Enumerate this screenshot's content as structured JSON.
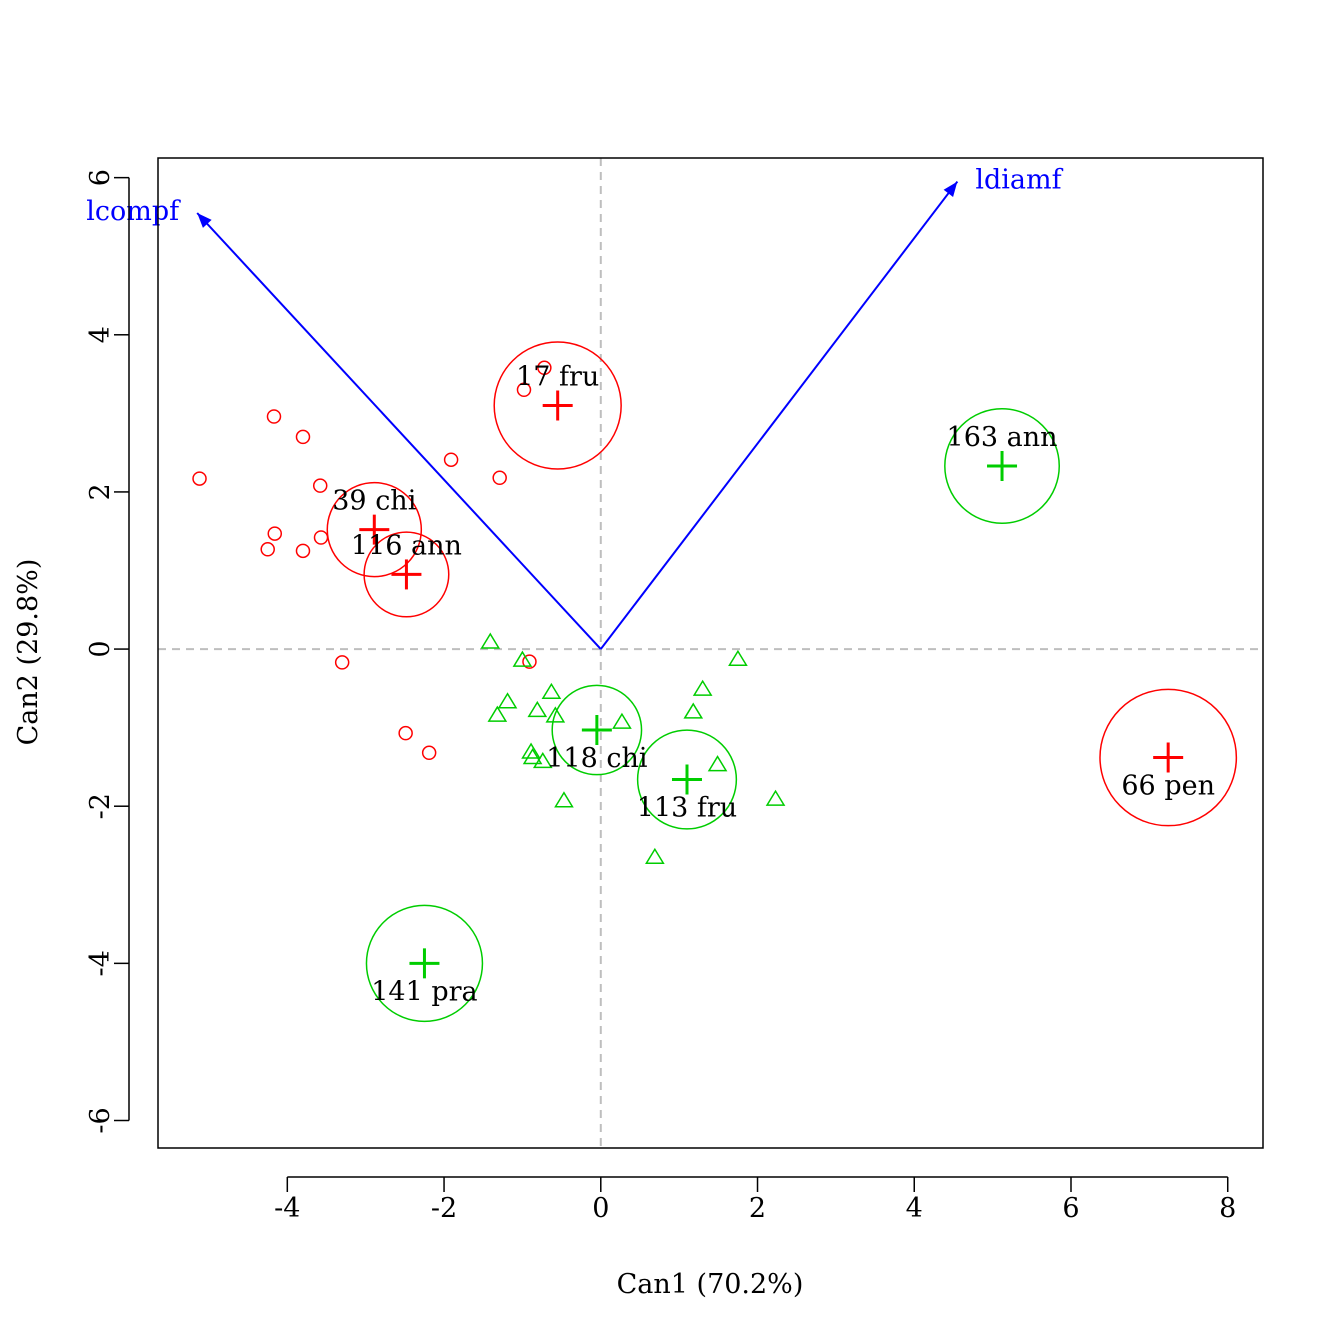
{
  "chart_data": {
    "type": "scatter",
    "title": "",
    "xlabel": "Can1 (70.2%)",
    "ylabel": "Can2 (29.8%)",
    "xlim": [
      -5.65,
      8.45
    ],
    "ylim": [
      -6.35,
      6.25
    ],
    "xticks": [
      -4,
      -2,
      0,
      2,
      4,
      6,
      8
    ],
    "xtick_labels": [
      "-4",
      "-2",
      "0",
      "2",
      "4",
      "6",
      "8"
    ],
    "yticks": [
      -6,
      -4,
      -2,
      0,
      2,
      4,
      6
    ],
    "ytick_labels": [
      "-6",
      "-4",
      "-2",
      "0",
      "2",
      "4",
      "6"
    ],
    "grid": false,
    "reference_lines": {
      "x": 0,
      "y": 0,
      "color": "#bebebe",
      "style": "dashed"
    },
    "colors": {
      "red": "#ff0000",
      "green": "#00cd00",
      "vector": "#0000ff",
      "refline": "#bebebe"
    },
    "series": [
      {
        "marker": "circle",
        "color": "#ff0000",
        "points": [
          [
            -0.72,
            3.58
          ],
          [
            -0.98,
            3.3
          ],
          [
            -4.17,
            2.96
          ],
          [
            -3.8,
            2.7
          ],
          [
            -1.91,
            2.41
          ],
          [
            -1.29,
            2.18
          ],
          [
            -5.12,
            2.17
          ],
          [
            -3.58,
            2.08
          ],
          [
            -4.16,
            1.47
          ],
          [
            -3.57,
            1.42
          ],
          [
            -4.25,
            1.27
          ],
          [
            -3.8,
            1.25
          ],
          [
            -3.3,
            -0.17
          ],
          [
            -0.91,
            -0.16
          ],
          [
            -2.49,
            -1.07
          ],
          [
            -2.19,
            -1.32
          ]
        ]
      },
      {
        "marker": "triangle",
        "color": "#00cd00",
        "points": [
          [
            -1.41,
            0.09
          ],
          [
            -1.0,
            -0.14
          ],
          [
            1.75,
            -0.13
          ],
          [
            -0.63,
            -0.55
          ],
          [
            1.3,
            -0.51
          ],
          [
            -1.19,
            -0.67
          ],
          [
            -1.32,
            -0.84
          ],
          [
            -0.81,
            -0.78
          ],
          [
            -0.58,
            -0.85
          ],
          [
            1.18,
            -0.8
          ],
          [
            0.27,
            -0.93
          ],
          [
            -0.89,
            -1.31
          ],
          [
            -0.87,
            -1.38
          ],
          [
            -0.74,
            -1.43
          ],
          [
            1.49,
            -1.47
          ],
          [
            -0.47,
            -1.93
          ],
          [
            2.23,
            -1.91
          ],
          [
            0.69,
            -2.65
          ]
        ]
      }
    ],
    "group_means": [
      {
        "label": "17 fru",
        "x": -0.55,
        "y": 3.1,
        "color": "#ff0000",
        "radius": 0.81
      },
      {
        "label": "39 chi",
        "x": -2.89,
        "y": 1.52,
        "color": "#ff0000",
        "radius": 0.6
      },
      {
        "label": "116 ann",
        "x": -2.48,
        "y": 0.95,
        "color": "#ff0000",
        "radius": 0.54
      },
      {
        "label": "66 pen",
        "x": 7.24,
        "y": -1.38,
        "color": "#ff0000",
        "radius": 0.87
      },
      {
        "label": "163 ann",
        "x": 5.12,
        "y": 2.33,
        "color": "#00cd00",
        "radius": 0.73
      },
      {
        "label": "118 chi",
        "x": -0.05,
        "y": -1.03,
        "color": "#00cd00",
        "radius": 0.57
      },
      {
        "label": "113 fru",
        "x": 1.1,
        "y": -1.66,
        "color": "#00cd00",
        "radius": 0.63
      },
      {
        "label": "141 pra",
        "x": -2.25,
        "y": -4.0,
        "color": "#00cd00",
        "radius": 0.74
      }
    ],
    "vectors": [
      {
        "label": "lcompf",
        "x": -5.15,
        "y": 5.55,
        "color": "#0000ff"
      },
      {
        "label": "ldiamf",
        "x": 4.55,
        "y": 5.95,
        "color": "#0000ff"
      }
    ]
  }
}
